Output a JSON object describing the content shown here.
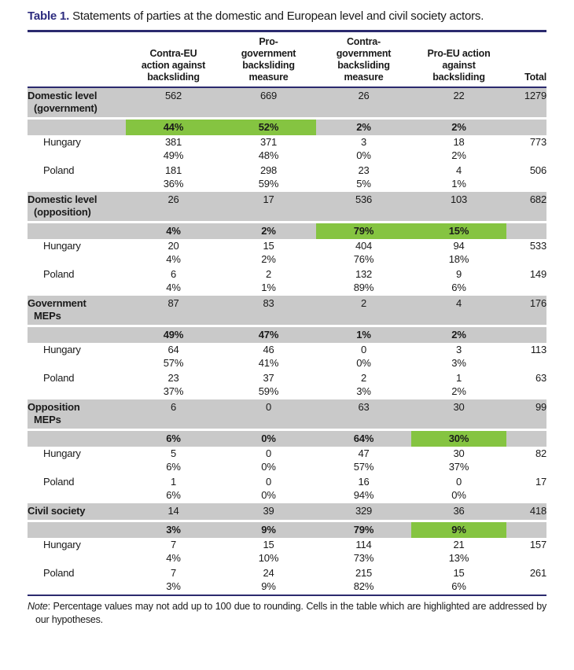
{
  "caption": {
    "label": "Table 1.",
    "text": "Statements of parties at the domestic and European level and civil society actors."
  },
  "colors": {
    "rule_navy": "#2b2a6e",
    "caption_label_navy": "#2d2c7f",
    "row_gray": "#c9c9c9",
    "highlight_green": "#85c441"
  },
  "columns": {
    "label": "",
    "c1": "Contra-EU\naction against\nbacksliding",
    "c2": "Pro-\ngovernment\nbacksliding\nmeasure",
    "c3": "Contra-\ngovernment\nbacksliding\nmeasure",
    "c4": "Pro-EU action\nagainst\nbacksliding",
    "total": "Total"
  },
  "chart_data": {
    "type": "table",
    "title": "Table 1. Statements of parties at the domestic and European level and civil society actors.",
    "categories": [
      "Contra-EU action against backsliding",
      "Pro-government backsliding measure",
      "Contra-government backsliding measure",
      "Pro-EU action against backsliding",
      "Total"
    ],
    "sections": [
      {
        "label1": "Domestic level",
        "label2": "(government)",
        "counts": [
          "562",
          "669",
          "26",
          "22"
        ],
        "total": "1279",
        "pct": [
          "44%",
          "52%",
          "2%",
          "2%"
        ],
        "highlights": [
          true,
          true,
          false,
          false
        ],
        "countries": [
          {
            "name": "Hungary",
            "counts": [
              "381",
              "371",
              "3",
              "18"
            ],
            "total": "773",
            "pct": [
              "49%",
              "48%",
              "0%",
              "2%"
            ]
          },
          {
            "name": "Poland",
            "counts": [
              "181",
              "298",
              "23",
              "4"
            ],
            "total": "506",
            "pct": [
              "36%",
              "59%",
              "5%",
              "1%"
            ]
          }
        ]
      },
      {
        "label1": "Domestic level",
        "label2": "(opposition)",
        "counts": [
          "26",
          "17",
          "536",
          "103"
        ],
        "total": "682",
        "pct": [
          "4%",
          "2%",
          "79%",
          "15%"
        ],
        "highlights": [
          false,
          false,
          true,
          true
        ],
        "countries": [
          {
            "name": "Hungary",
            "counts": [
              "20",
              "15",
              "404",
              "94"
            ],
            "total": "533",
            "pct": [
              "4%",
              "2%",
              "76%",
              "18%"
            ]
          },
          {
            "name": "Poland",
            "counts": [
              "6",
              "2",
              "132",
              "9"
            ],
            "total": "149",
            "pct": [
              "4%",
              "1%",
              "89%",
              "6%"
            ]
          }
        ]
      },
      {
        "label1": "Government",
        "label2": "MEPs",
        "counts": [
          "87",
          "83",
          "2",
          "4"
        ],
        "total": "176",
        "pct": [
          "49%",
          "47%",
          "1%",
          "2%"
        ],
        "highlights": [
          false,
          false,
          false,
          false
        ],
        "countries": [
          {
            "name": "Hungary",
            "counts": [
              "64",
              "46",
              "0",
              "3"
            ],
            "total": "113",
            "pct": [
              "57%",
              "41%",
              "0%",
              "3%"
            ]
          },
          {
            "name": "Poland",
            "counts": [
              "23",
              "37",
              "2",
              "1"
            ],
            "total": "63",
            "pct": [
              "37%",
              "59%",
              "3%",
              "2%"
            ]
          }
        ]
      },
      {
        "label1": "Opposition",
        "label2": "MEPs",
        "counts": [
          "6",
          "0",
          "63",
          "30"
        ],
        "total": "99",
        "pct": [
          "6%",
          "0%",
          "64%",
          "30%"
        ],
        "highlights": [
          false,
          false,
          false,
          true
        ],
        "countries": [
          {
            "name": "Hungary",
            "counts": [
              "5",
              "0",
              "47",
              "30"
            ],
            "total": "82",
            "pct": [
              "6%",
              "0%",
              "57%",
              "37%"
            ]
          },
          {
            "name": "Poland",
            "counts": [
              "1",
              "0",
              "16",
              "0"
            ],
            "total": "17",
            "pct": [
              "6%",
              "0%",
              "94%",
              "0%"
            ]
          }
        ]
      },
      {
        "label1": "Civil society",
        "label2": "",
        "counts": [
          "14",
          "39",
          "329",
          "36"
        ],
        "total": "418",
        "pct": [
          "3%",
          "9%",
          "79%",
          "9%"
        ],
        "highlights": [
          false,
          false,
          false,
          true
        ],
        "countries": [
          {
            "name": "Hungary",
            "counts": [
              "7",
              "15",
              "114",
              "21"
            ],
            "total": "157",
            "pct": [
              "4%",
              "10%",
              "73%",
              "13%"
            ]
          },
          {
            "name": "Poland",
            "counts": [
              "7",
              "24",
              "215",
              "15"
            ],
            "total": "261",
            "pct": [
              "3%",
              "9%",
              "82%",
              "6%"
            ]
          }
        ]
      }
    ]
  },
  "note": {
    "label": "Note",
    "text": ": Percentage values may not add up to 100 due to rounding. Cells in the table which are highlighted are addressed by our hypotheses."
  }
}
